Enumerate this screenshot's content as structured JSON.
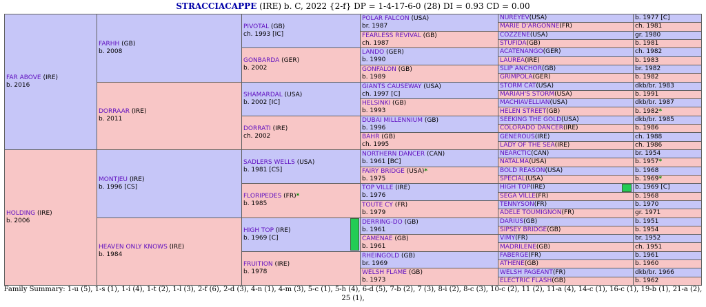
{
  "header": {
    "horse": "STRACCIACAPPE",
    "rest": " (IRE) b. C, 2022 {2-f} DP = 1-4-17-6-0 (28) DI = 0.93   CD = 0.00"
  },
  "colors": {
    "male": "#c6c6f8",
    "female": "#f8c6c6",
    "dosage_bar": "#22cc55"
  },
  "pedigree": {
    "g1": [
      {
        "name": "FAR ABOVE",
        "country": "(IRE)",
        "info": "b. 2016",
        "sex": "m"
      },
      {
        "name": "HOLDING",
        "country": "(IRE)",
        "info": "b. 2006",
        "sex": "f"
      }
    ],
    "g2": [
      {
        "name": "FARHH",
        "country": "(GB)",
        "info": "b. 2008",
        "sex": "m"
      },
      {
        "name": "DORRAAR",
        "country": "(IRE)",
        "info": "b. 2011",
        "sex": "f"
      },
      {
        "name": "MONTJEU",
        "country": "(IRE)",
        "info": "b. 1996 [CS]",
        "sex": "m"
      },
      {
        "name": "HEAVEN ONLY KNOWS",
        "country": "(IRE)",
        "info": "b. 1984",
        "sex": "f"
      }
    ],
    "g3": [
      {
        "name": "PIVOTAL",
        "country": "(GB)",
        "info": "ch. 1993 [IC]",
        "sex": "m"
      },
      {
        "name": "GONBARDA",
        "country": "(GER)",
        "info": "b. 2002",
        "sex": "f"
      },
      {
        "name": "SHAMARDAL",
        "country": "(USA)",
        "info": "b. 2002 [IC]",
        "sex": "m"
      },
      {
        "name": "DORRATI",
        "country": "(IRE)",
        "info": "ch. 2002",
        "sex": "f"
      },
      {
        "name": "SADLERS WELLS",
        "country": "(USA)",
        "info": "b. 1981 [CS]",
        "sex": "m"
      },
      {
        "name": "FLORIPEDES",
        "country": "(FR)",
        "info": "b. 1985",
        "sex": "f",
        "star": "*"
      },
      {
        "name": "HIGH TOP",
        "country": "(IRE)",
        "info": "b. 1969 [C]",
        "sex": "m"
      },
      {
        "name": "FRUITION",
        "country": "(IRE)",
        "info": "b. 1978",
        "sex": "f"
      }
    ],
    "g4": [
      {
        "name": "POLAR FALCON",
        "country": "(USA)",
        "info": "br. 1987",
        "sex": "m"
      },
      {
        "name": "FEARLESS REVIVAL",
        "country": "(GB)",
        "info": "ch. 1987",
        "sex": "f"
      },
      {
        "name": "LANDO",
        "country": "(GER)",
        "info": "b. 1990",
        "sex": "m"
      },
      {
        "name": "GONFALON",
        "country": "(GB)",
        "info": "b. 1989",
        "sex": "f"
      },
      {
        "name": "GIANTS CAUSEWAY",
        "country": "(USA)",
        "info": "ch. 1997 [C]",
        "sex": "m"
      },
      {
        "name": "HELSINKI",
        "country": "(GB)",
        "info": "b. 1993",
        "sex": "f"
      },
      {
        "name": "DUBAI MILLENNIUM",
        "country": "(GB)",
        "info": "b. 1996",
        "sex": "m"
      },
      {
        "name": "BAHR",
        "country": "(GB)",
        "info": "ch. 1995",
        "sex": "f"
      },
      {
        "name": "NORTHERN DANCER",
        "country": "(CAN)",
        "info": "b. 1961 [BC]",
        "sex": "m"
      },
      {
        "name": "FAIRY BRIDGE",
        "country": "(USA)",
        "info": "b. 1975",
        "sex": "f",
        "star": "*"
      },
      {
        "name": "TOP VILLE",
        "country": "(IRE)",
        "info": "b. 1976",
        "sex": "m"
      },
      {
        "name": "TOUTE CY",
        "country": "(FR)",
        "info": "b. 1979",
        "sex": "f"
      },
      {
        "name": "DERRING-DO",
        "country": "(GB)",
        "info": "b. 1961",
        "sex": "m"
      },
      {
        "name": "CAMENAE",
        "country": "(GB)",
        "info": "b. 1961",
        "sex": "f"
      },
      {
        "name": "RHEINGOLD",
        "country": "(GB)",
        "info": "br. 1969",
        "sex": "m"
      },
      {
        "name": "WELSH FLAME",
        "country": "(GB)",
        "info": "b. 1973",
        "sex": "f"
      }
    ],
    "g5": [
      {
        "name": "NUREYEV",
        "country": "(USA)",
        "info": "b. 1977 [C]",
        "sex": "m"
      },
      {
        "name": "MARIE D'ARGONNE",
        "country": "(FR)",
        "info": "ch. 1981",
        "sex": "f"
      },
      {
        "name": "COZZENE",
        "country": "(USA)",
        "info": "gr. 1980",
        "sex": "m"
      },
      {
        "name": "STUFIDA",
        "country": "(GB)",
        "info": "b. 1981",
        "sex": "f"
      },
      {
        "name": "ACATENANGO",
        "country": "(GER)",
        "info": "ch. 1982",
        "sex": "m"
      },
      {
        "name": "LAUREA",
        "country": "(IRE)",
        "info": "b. 1983",
        "sex": "f"
      },
      {
        "name": "SLIP ANCHOR",
        "country": "(GB)",
        "info": "br. 1982",
        "sex": "m"
      },
      {
        "name": "GRIMPOLA",
        "country": "(GER)",
        "info": "b. 1982",
        "sex": "f"
      },
      {
        "name": "STORM CAT",
        "country": "(USA)",
        "info": "dkb/br. 1983",
        "sex": "m"
      },
      {
        "name": "MARIAH'S STORM",
        "country": "(USA)",
        "info": "b. 1991",
        "sex": "f"
      },
      {
        "name": "MACHIAVELLIAN",
        "country": "(USA)",
        "info": "dkb/br. 1987",
        "sex": "m"
      },
      {
        "name": "HELEN STREET",
        "country": "(GB)",
        "info": "b. 1982",
        "sex": "f",
        "star": "*"
      },
      {
        "name": "SEEKING THE GOLD",
        "country": "(USA)",
        "info": "dkb/br. 1985",
        "sex": "m"
      },
      {
        "name": "COLORADO DANCER",
        "country": "(IRE)",
        "info": "b. 1986",
        "sex": "f"
      },
      {
        "name": "GENEROUS",
        "country": "(IRE)",
        "info": "ch. 1988",
        "sex": "m"
      },
      {
        "name": "LADY OF THE SEA",
        "country": "(IRE)",
        "info": "ch. 1986",
        "sex": "f"
      },
      {
        "name": "NEARCTIC",
        "country": "(CAN)",
        "info": "br. 1954",
        "sex": "m"
      },
      {
        "name": "NATALMA",
        "country": "(USA)",
        "info": "b. 1957",
        "sex": "f",
        "star": "*"
      },
      {
        "name": "BOLD REASON",
        "country": "(USA)",
        "info": "b. 1968",
        "sex": "m"
      },
      {
        "name": "SPECIAL",
        "country": "(USA)",
        "info": "b. 1969",
        "sex": "f",
        "star": "*"
      },
      {
        "name": "HIGH TOP",
        "country": "(IRE)",
        "info": "b. 1969 [C]",
        "sex": "m"
      },
      {
        "name": "SEGA VILLE",
        "country": "(FR)",
        "info": "b. 1968",
        "sex": "f"
      },
      {
        "name": "TENNYSON",
        "country": "(FR)",
        "info": "b. 1970",
        "sex": "m"
      },
      {
        "name": "ADELE TOUMIGNON",
        "country": "(FR)",
        "info": "gr. 1971",
        "sex": "f"
      },
      {
        "name": "DARIUS",
        "country": "(GB)",
        "info": "b. 1951",
        "sex": "m"
      },
      {
        "name": "SIPSEY BRIDGE",
        "country": "(GB)",
        "info": "b. 1954",
        "sex": "f"
      },
      {
        "name": "VIMY",
        "country": "(FR)",
        "info": "br. 1952",
        "sex": "m"
      },
      {
        "name": "MADRILENE",
        "country": "(GB)",
        "info": "ch. 1951",
        "sex": "f"
      },
      {
        "name": "FABERGE",
        "country": "(FR)",
        "info": "b. 1961",
        "sex": "m"
      },
      {
        "name": "ATHENE",
        "country": "(GB)",
        "info": "b. 1960",
        "sex": "f"
      },
      {
        "name": "WELSH PAGEANT",
        "country": "(FR)",
        "info": "dkb/br. 1966",
        "sex": "m"
      },
      {
        "name": "ELECTRIC FLASH",
        "country": "(GB)",
        "info": "b. 1962",
        "sex": "f"
      }
    ]
  },
  "family_summary": "Family Summary: 1-u (5), 1-s (1), 1-i (4), 1-t (2), 1-l (3), 2-f (6), 2-d (3), 4-n (1), 4-m (3), 5-c (1), 5-h (4), 6-d (5), 7-b (2), 7 (3), 8-i (2), 8-c (3), 10-c (2), 11 (2), 11-a (4), 14-c (1), 16-c (1), 19-b (1), 21-a (2), 25 (1),"
}
